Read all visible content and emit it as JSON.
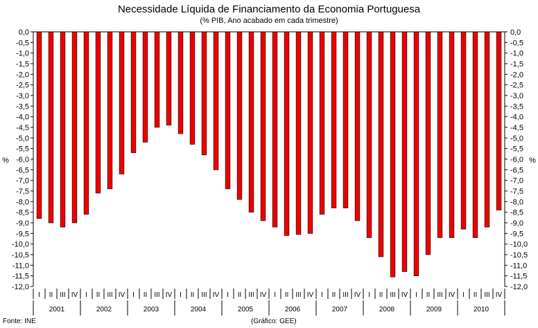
{
  "chart_data": {
    "type": "bar",
    "title": "Necessidade Líquida de Financiamento da Economia Portuguesa",
    "subtitle": "(% PIB, Ano acabado em cada trimestre)",
    "ylabel_left": "%",
    "ylabel_right": "%",
    "ylim": [
      -12.0,
      0.0
    ],
    "ytick_step": 0.5,
    "yticks": [
      "0,0",
      "-0,5",
      "-1,0",
      "-1,5",
      "-2,0",
      "-2,5",
      "-3,0",
      "-3,5",
      "-4,0",
      "-4,5",
      "-5,0",
      "-5,5",
      "-6,0",
      "-6,5",
      "-7,0",
      "-7,5",
      "-8,0",
      "-8,5",
      "-9,0",
      "-9,5",
      "-10,0",
      "-10,5",
      "-11,0",
      "-11,5",
      "-12,0"
    ],
    "quarters": [
      "I",
      "II",
      "III",
      "IV"
    ],
    "years": [
      "2001",
      "2002",
      "2003",
      "2004",
      "2005",
      "2006",
      "2007",
      "2008",
      "2009",
      "2010"
    ],
    "values": [
      -8.8,
      -9.0,
      -9.2,
      -9.0,
      -8.6,
      -7.6,
      -7.4,
      -6.7,
      -5.7,
      -5.2,
      -4.5,
      -4.4,
      -4.8,
      -5.3,
      -5.8,
      -6.5,
      -7.4,
      -7.9,
      -8.5,
      -8.9,
      -9.2,
      -9.6,
      -9.55,
      -9.5,
      -8.6,
      -8.3,
      -8.3,
      -8.9,
      -9.7,
      -10.6,
      -11.55,
      -11.3,
      -11.5,
      -10.5,
      -9.7,
      -9.7,
      -9.3,
      -9.7,
      -9.2,
      -8.4
    ],
    "bar_color": "#ee0000",
    "bar_edge_color": "#000000",
    "grid": false
  },
  "footer": {
    "source": "Fonte: INE",
    "credit": "(Gráfico: GEE)"
  }
}
